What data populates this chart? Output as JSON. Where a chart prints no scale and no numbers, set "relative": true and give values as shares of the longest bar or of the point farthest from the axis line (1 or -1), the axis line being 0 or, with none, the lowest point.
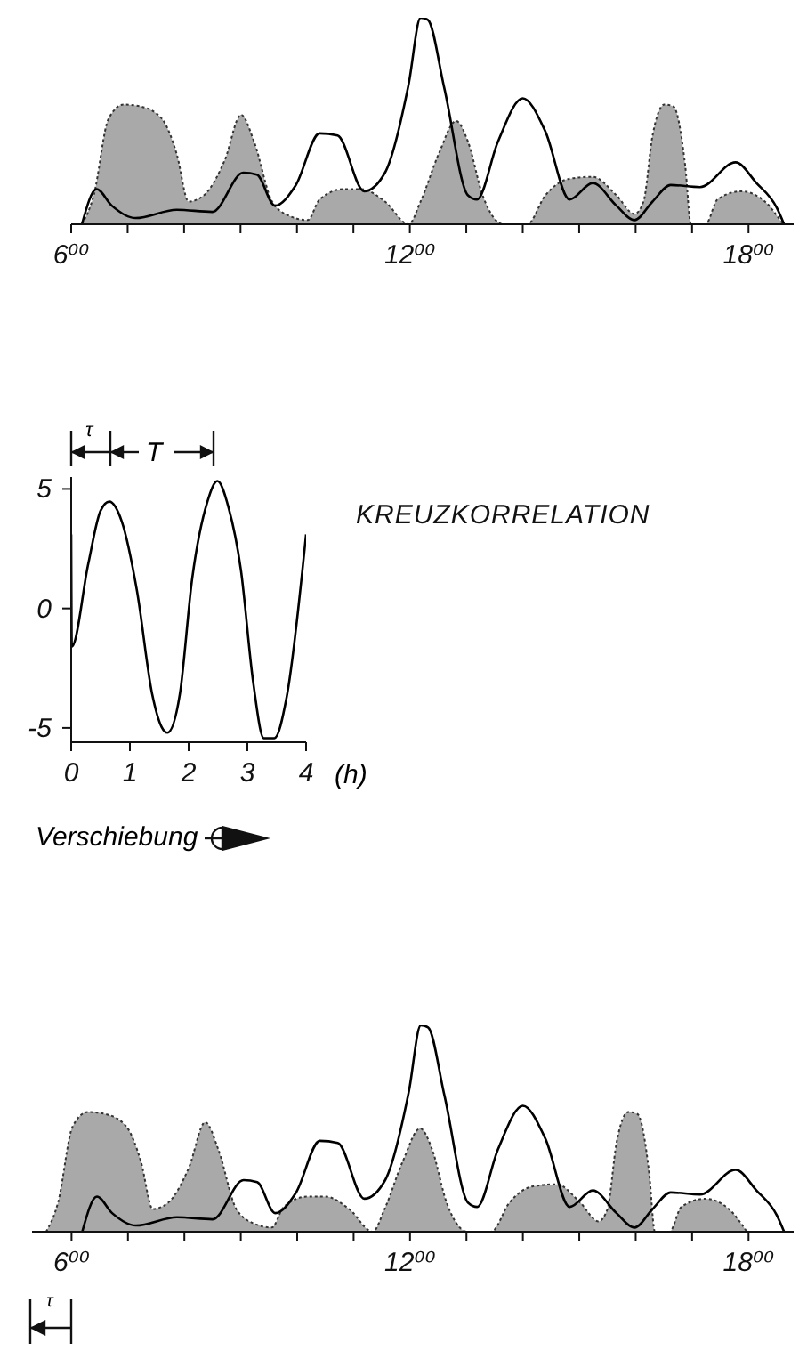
{
  "chart_data": [
    {
      "type": "area",
      "relative": true,
      "xlim": [
        6,
        18.8
      ],
      "xticks": [
        {
          "value": 6,
          "label": "6⁰⁰"
        },
        {
          "value": 7,
          "label": null
        },
        {
          "value": 8,
          "label": null
        },
        {
          "value": 9,
          "label": null
        },
        {
          "value": 10,
          "label": null
        },
        {
          "value": 11,
          "label": null
        },
        {
          "value": 12,
          "label": "12⁰⁰"
        },
        {
          "value": 13,
          "label": null
        },
        {
          "value": 14,
          "label": null
        },
        {
          "value": 15,
          "label": null
        },
        {
          "value": 16,
          "label": null
        },
        {
          "value": 17,
          "label": null
        },
        {
          "value": 18,
          "label": "18⁰⁰"
        }
      ],
      "series": [
        {
          "type": "area",
          "color": "#9a9a9a",
          "line_style": "dotted",
          "x": [
            6.19,
            6.4,
            6.66,
            6.93,
            7.24,
            7.61,
            7.87,
            8.08,
            8.35,
            8.72,
            9.01,
            9.24,
            9.56,
            9.87,
            10.19,
            10.4,
            10.82,
            11.14,
            11.56,
            11.98,
            12.19,
            12.51,
            12.82,
            13.03,
            13.29,
            13.66,
            14.08,
            14.4,
            14.82,
            15.24,
            15.66,
            15.98,
            16.14,
            16.3,
            16.51,
            16.67,
            16.88,
            16.98,
            17.24,
            17.45,
            17.87,
            18.29,
            18.61
          ],
          "values": [
            0,
            0.14,
            0.51,
            0.58,
            0.57,
            0.51,
            0.34,
            0.11,
            0.14,
            0.31,
            0.53,
            0.4,
            0.11,
            0.04,
            0.02,
            0.12,
            0.17,
            0.17,
            0.11,
            0,
            0.11,
            0.34,
            0.5,
            0.4,
            0.14,
            0,
            0,
            0.14,
            0.22,
            0.23,
            0.14,
            0.05,
            0.11,
            0.43,
            0.58,
            0.57,
            0.28,
            0,
            0,
            0.12,
            0.16,
            0.11,
            0
          ]
        },
        {
          "type": "line",
          "color": "#000000",
          "x": [
            6.19,
            6.45,
            6.72,
            7.14,
            7.87,
            8.5,
            9.05,
            9.29,
            9.61,
            9.98,
            10.4,
            10.72,
            11.19,
            11.56,
            11.98,
            12.19,
            12.32,
            12.61,
            13.03,
            13.19,
            13.56,
            14.0,
            14.4,
            14.83,
            15.24,
            15.66,
            15.98,
            16.3,
            16.62,
            17.14,
            17.77,
            18.14,
            18.5,
            18.63
          ],
          "values": [
            0,
            0.17,
            0.09,
            0.03,
            0.07,
            0.06,
            0.25,
            0.24,
            0.09,
            0.19,
            0.44,
            0.43,
            0.16,
            0.25,
            0.68,
            1.0,
            0.99,
            0.66,
            0.14,
            0.12,
            0.4,
            0.61,
            0.45,
            0.12,
            0.2,
            0.09,
            0.02,
            0.11,
            0.19,
            0.18,
            0.3,
            0.2,
            0.08,
            0
          ]
        }
      ]
    },
    {
      "type": "line",
      "xlabel": "Verschiebung",
      "annotations": [
        "(h)",
        "τ",
        "T",
        "KREUZKORRELATION"
      ],
      "xlim": [
        0,
        4
      ],
      "xticks": [
        0,
        1,
        2,
        3,
        4
      ],
      "ylim": [
        -5.6,
        5.5
      ],
      "yticks": [
        -5,
        0,
        5
      ],
      "series": [
        {
          "color": "#000000",
          "x": [
            0,
            0.01,
            0.29,
            0.5,
            0.65,
            0.86,
            1.12,
            1.38,
            1.54,
            1.64,
            1.85,
            2.06,
            2.32,
            2.49,
            2.68,
            2.89,
            3.1,
            3.28,
            3.46,
            3.67,
            4.0
          ],
          "values": [
            3.1,
            -1.6,
            1.86,
            4.09,
            4.47,
            3.65,
            0.74,
            -3.6,
            -4.96,
            -5.2,
            -3.6,
            1.24,
            4.47,
            5.33,
            4.22,
            1.61,
            -3.1,
            -5.43,
            -5.43,
            -3.7,
            3.1
          ]
        }
      ]
    },
    {
      "type": "area",
      "relative": true,
      "annotations": [
        "τ"
      ],
      "xlim": [
        5.3,
        18.8
      ],
      "xticks": [
        {
          "value": 6,
          "label": "6⁰⁰"
        },
        {
          "value": 7,
          "label": null
        },
        {
          "value": 8,
          "label": null
        },
        {
          "value": 9,
          "label": null
        },
        {
          "value": 10,
          "label": null
        },
        {
          "value": 11,
          "label": null
        },
        {
          "value": 12,
          "label": "12⁰⁰"
        },
        {
          "value": 13,
          "label": null
        },
        {
          "value": 14,
          "label": null
        },
        {
          "value": 15,
          "label": null
        },
        {
          "value": 16,
          "label": null
        },
        {
          "value": 17,
          "label": null
        },
        {
          "value": 18,
          "label": "18⁰⁰"
        }
      ],
      "series": [
        {
          "type": "area",
          "color": "#9a9a9a",
          "line_style": "dotted",
          "x": [
            5.55,
            5.76,
            6.02,
            6.29,
            6.6,
            6.97,
            7.23,
            7.44,
            7.71,
            8.08,
            8.37,
            8.6,
            8.92,
            9.23,
            9.55,
            9.76,
            10.18,
            10.5,
            10.92,
            11.34,
            11.55,
            11.87,
            12.18,
            12.39,
            12.65,
            13.02,
            13.44,
            13.76,
            14.18,
            14.6,
            15.02,
            15.34,
            15.5,
            15.66,
            15.87,
            16.03,
            16.24,
            16.34,
            16.6,
            16.81,
            17.23,
            17.65,
            17.97
          ],
          "values": [
            0,
            0.14,
            0.51,
            0.58,
            0.57,
            0.51,
            0.34,
            0.11,
            0.14,
            0.31,
            0.53,
            0.4,
            0.11,
            0.04,
            0.02,
            0.12,
            0.17,
            0.17,
            0.11,
            0,
            0.11,
            0.34,
            0.5,
            0.4,
            0.14,
            0,
            0,
            0.14,
            0.22,
            0.23,
            0.14,
            0.05,
            0.11,
            0.43,
            0.58,
            0.57,
            0.28,
            0,
            0,
            0.12,
            0.16,
            0.11,
            0
          ]
        },
        {
          "type": "line",
          "color": "#000000",
          "x": [
            6.19,
            6.45,
            6.72,
            7.14,
            7.87,
            8.5,
            9.05,
            9.29,
            9.61,
            9.98,
            10.4,
            10.72,
            11.19,
            11.56,
            11.98,
            12.19,
            12.32,
            12.61,
            13.03,
            13.19,
            13.56,
            14.0,
            14.4,
            14.83,
            15.24,
            15.66,
            15.98,
            16.3,
            16.62,
            17.14,
            17.77,
            18.14,
            18.5,
            18.63
          ],
          "values": [
            0,
            0.17,
            0.09,
            0.03,
            0.07,
            0.06,
            0.25,
            0.24,
            0.09,
            0.19,
            0.44,
            0.43,
            0.16,
            0.25,
            0.68,
            1.0,
            0.99,
            0.66,
            0.14,
            0.12,
            0.4,
            0.61,
            0.45,
            0.12,
            0.2,
            0.09,
            0.02,
            0.11,
            0.19,
            0.18,
            0.3,
            0.2,
            0.08,
            0
          ]
        }
      ]
    }
  ]
}
